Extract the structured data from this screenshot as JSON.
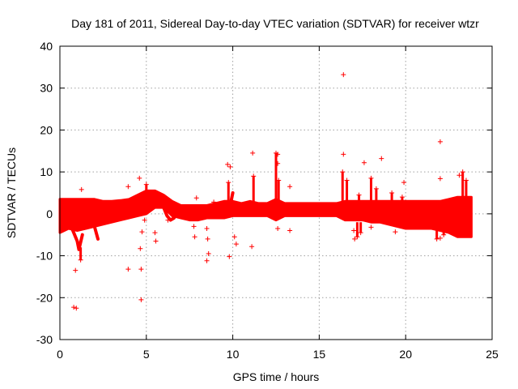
{
  "chart_data": {
    "type": "scatter",
    "title": "Day 181 of 2011, Sidereal Day-to-day VTEC variation (SDTVAR) for receiver wtzr",
    "xlabel": "GPS time / hours",
    "ylabel": "SDTVAR / TECUs",
    "xlim": [
      0,
      25
    ],
    "ylim": [
      -30,
      40
    ],
    "x_ticks": [
      "0",
      "5",
      "10",
      "15",
      "20",
      "25"
    ],
    "y_ticks": [
      "-30",
      "-20",
      "-10",
      "0",
      "10",
      "20",
      "30",
      "40"
    ],
    "grid": true,
    "marker": "+",
    "series_color": "#ff0000",
    "band_envelope": {
      "description": "dense band of points, upper and lower bounds vs hour",
      "x": [
        0.0,
        0.5,
        1.0,
        1.5,
        2.0,
        2.5,
        3.0,
        3.5,
        4.0,
        4.5,
        5.0,
        5.5,
        6.0,
        6.5,
        7.0,
        7.5,
        8.0,
        8.5,
        9.0,
        9.5,
        10.0,
        10.5,
        11.0,
        11.5,
        12.0,
        12.5,
        13.0,
        13.5,
        14.0,
        14.5,
        15.0,
        15.5,
        16.0,
        16.5,
        17.0,
        17.5,
        18.0,
        18.5,
        19.0,
        19.5,
        20.0,
        20.5,
        21.0,
        21.5,
        22.0,
        22.5,
        23.0,
        23.5,
        23.8
      ],
      "upper": [
        3.5,
        3.5,
        3.5,
        3.5,
        3.5,
        3.0,
        3.0,
        3.2,
        3.5,
        4.5,
        5.5,
        5.5,
        4.5,
        3.0,
        2.0,
        2.0,
        2.0,
        2.0,
        2.5,
        3.0,
        3.0,
        2.5,
        3.0,
        2.5,
        2.5,
        3.5,
        2.5,
        2.5,
        2.5,
        2.5,
        2.5,
        2.5,
        2.5,
        3.0,
        3.0,
        3.0,
        3.0,
        3.0,
        3.0,
        3.0,
        3.0,
        3.0,
        3.0,
        3.0,
        3.0,
        3.5,
        4.0,
        4.0,
        4.0
      ],
      "lower": [
        -4.5,
        -3.5,
        -4.0,
        -3.5,
        -3.0,
        -2.5,
        -2.0,
        -1.5,
        -1.0,
        -0.5,
        0.0,
        1.5,
        1.5,
        -0.5,
        -1.0,
        -1.5,
        -1.5,
        -1.0,
        -1.0,
        -1.0,
        -0.5,
        -0.5,
        -0.5,
        -0.5,
        -0.5,
        -1.5,
        -0.5,
        -0.5,
        -0.5,
        -0.5,
        -0.5,
        -0.5,
        -0.5,
        -1.5,
        -1.5,
        -1.5,
        -2.0,
        -2.0,
        -2.5,
        -3.0,
        -3.5,
        -3.5,
        -3.5,
        -3.5,
        -4.0,
        -4.5,
        -5.5,
        -5.5,
        -5.5
      ]
    },
    "arc_segments": [
      {
        "x": [
          0.4,
          0.6,
          0.8,
          1.0,
          1.1,
          1.3
        ],
        "y": [
          -1.0,
          -2.5,
          -4.5,
          -6.5,
          -8.5,
          -5.0
        ]
      },
      {
        "x": [
          1.3,
          1.5,
          1.8,
          2.0,
          2.2
        ],
        "y": [
          -3.0,
          -1.0,
          -1.5,
          -3.0,
          -6.0
        ]
      },
      {
        "x": [
          5.8,
          6.0,
          6.2,
          6.4,
          6.6
        ],
        "y": [
          3.5,
          1.5,
          -0.5,
          -1.5,
          -1.0
        ]
      },
      {
        "x": [
          9.6,
          9.7,
          9.8,
          9.9,
          10.0
        ],
        "y": [
          -0.5,
          0.0,
          1.5,
          3.0,
          5.0
        ]
      }
    ],
    "spikes": [
      {
        "x": 9.75,
        "y_min": 2.0,
        "y_max": 7.5
      },
      {
        "x": 11.2,
        "y_min": 2.5,
        "y_max": 9.0
      },
      {
        "x": 12.5,
        "y_min": 2.0,
        "y_max": 14.5
      },
      {
        "x": 12.65,
        "y_min": 2.0,
        "y_max": 8.0
      },
      {
        "x": 16.35,
        "y_min": 2.5,
        "y_max": 10.0
      },
      {
        "x": 16.6,
        "y_min": 2.5,
        "y_max": 8.0
      },
      {
        "x": 17.3,
        "y_min": 2.0,
        "y_max": 4.5
      },
      {
        "x": 18.0,
        "y_min": 2.0,
        "y_max": 8.5
      },
      {
        "x": 18.3,
        "y_min": 2.0,
        "y_max": 6.0
      },
      {
        "x": 19.2,
        "y_min": 2.5,
        "y_max": 5.0
      },
      {
        "x": 19.8,
        "y_min": 2.5,
        "y_max": 4.0
      },
      {
        "x": 21.8,
        "y_min": -1.0,
        "y_max": -6.0
      },
      {
        "x": 22.2,
        "y_min": -1.0,
        "y_max": -5.0
      },
      {
        "x": 23.3,
        "y_min": 3.0,
        "y_max": 10.0
      },
      {
        "x": 23.5,
        "y_min": 3.0,
        "y_max": 8.0
      },
      {
        "x": 17.2,
        "y_min": -2.0,
        "y_max": -5.5
      },
      {
        "x": 17.4,
        "y_min": -2.0,
        "y_max": -4.5
      },
      {
        "x": 1.2,
        "y_min": -8.0,
        "y_max": -11.0
      },
      {
        "x": 5.0,
        "y_min": 4.5,
        "y_max": 7.0
      }
    ],
    "outliers": [
      {
        "x": 0.8,
        "y": -22.3
      },
      {
        "x": 0.95,
        "y": -22.5
      },
      {
        "x": 0.9,
        "y": -13.5
      },
      {
        "x": 1.25,
        "y": 5.8
      },
      {
        "x": 3.95,
        "y": 6.5
      },
      {
        "x": 3.95,
        "y": -13.2
      },
      {
        "x": 4.7,
        "y": -13.2
      },
      {
        "x": 4.7,
        "y": -20.5
      },
      {
        "x": 4.65,
        "y": -8.3
      },
      {
        "x": 4.75,
        "y": -4.3
      },
      {
        "x": 4.9,
        "y": -1.5
      },
      {
        "x": 4.6,
        "y": 8.5
      },
      {
        "x": 5.5,
        "y": -4.5
      },
      {
        "x": 5.55,
        "y": -6.5
      },
      {
        "x": 6.25,
        "y": -1.5
      },
      {
        "x": 7.75,
        "y": -3.0
      },
      {
        "x": 7.8,
        "y": -5.5
      },
      {
        "x": 7.9,
        "y": 3.8
      },
      {
        "x": 8.5,
        "y": -3.5
      },
      {
        "x": 8.55,
        "y": -6.0
      },
      {
        "x": 8.6,
        "y": -9.5
      },
      {
        "x": 8.5,
        "y": -11.2
      },
      {
        "x": 8.9,
        "y": 2.8
      },
      {
        "x": 9.7,
        "y": 11.8
      },
      {
        "x": 9.85,
        "y": 11.2
      },
      {
        "x": 9.8,
        "y": -10.2
      },
      {
        "x": 10.1,
        "y": -5.5
      },
      {
        "x": 10.2,
        "y": -7.2
      },
      {
        "x": 11.1,
        "y": -7.8
      },
      {
        "x": 11.15,
        "y": 14.5
      },
      {
        "x": 12.6,
        "y": 14.2
      },
      {
        "x": 12.6,
        "y": 12.0
      },
      {
        "x": 12.6,
        "y": -3.5
      },
      {
        "x": 13.3,
        "y": 6.5
      },
      {
        "x": 13.3,
        "y": -4.0
      },
      {
        "x": 16.4,
        "y": 33.2
      },
      {
        "x": 16.4,
        "y": 14.2
      },
      {
        "x": 17.0,
        "y": -4.0
      },
      {
        "x": 17.05,
        "y": -6.0
      },
      {
        "x": 17.6,
        "y": 12.2
      },
      {
        "x": 18.0,
        "y": -3.2
      },
      {
        "x": 18.6,
        "y": 13.2
      },
      {
        "x": 19.4,
        "y": -4.3
      },
      {
        "x": 19.9,
        "y": 7.5
      },
      {
        "x": 22.0,
        "y": 17.2
      },
      {
        "x": 22.0,
        "y": 8.4
      },
      {
        "x": 22.0,
        "y": -5.8
      },
      {
        "x": 23.1,
        "y": 9.2
      }
    ]
  }
}
